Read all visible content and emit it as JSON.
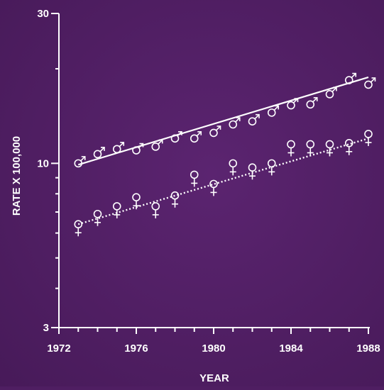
{
  "chart_data": {
    "type": "scatter",
    "title": "",
    "xlabel": "YEAR",
    "ylabel": "RATE X 100,000",
    "yscale": "log",
    "xlim": [
      1972,
      1988
    ],
    "ylim": [
      3,
      30
    ],
    "x_ticks": [
      1972,
      1976,
      1980,
      1984,
      1988
    ],
    "x_tick_labels": [
      "1972",
      "1976",
      "1980",
      "1984",
      "1988"
    ],
    "y_ticks": [
      3,
      10,
      30
    ],
    "y_tick_labels": [
      "3",
      "10",
      "30"
    ],
    "grid": false,
    "colors": {
      "background": "#4f1e62",
      "foreground": "#ffffff"
    },
    "series": [
      {
        "marker": "male-symbol",
        "fit_line": "solid",
        "x": [
          1973,
          1974,
          1975,
          1976,
          1977,
          1978,
          1979,
          1980,
          1981,
          1982,
          1983,
          1984,
          1985,
          1986,
          1987,
          1988
        ],
        "y": [
          10.0,
          10.7,
          11.1,
          11.0,
          11.3,
          12.0,
          12.0,
          12.5,
          13.3,
          13.6,
          14.5,
          15.3,
          15.4,
          16.6,
          18.4,
          17.8
        ],
        "fit": [
          9.9,
          18.8
        ]
      },
      {
        "marker": "female-symbol",
        "fit_line": "dotted",
        "x": [
          1973,
          1974,
          1975,
          1976,
          1977,
          1978,
          1979,
          1980,
          1981,
          1982,
          1983,
          1984,
          1985,
          1986,
          1987,
          1988
        ],
        "y": [
          6.4,
          6.9,
          7.3,
          7.8,
          7.3,
          7.9,
          9.2,
          8.6,
          10.0,
          9.7,
          10.0,
          11.5,
          11.5,
          11.5,
          11.6,
          12.4
        ],
        "fit": [
          6.4,
          12.0
        ]
      }
    ]
  }
}
